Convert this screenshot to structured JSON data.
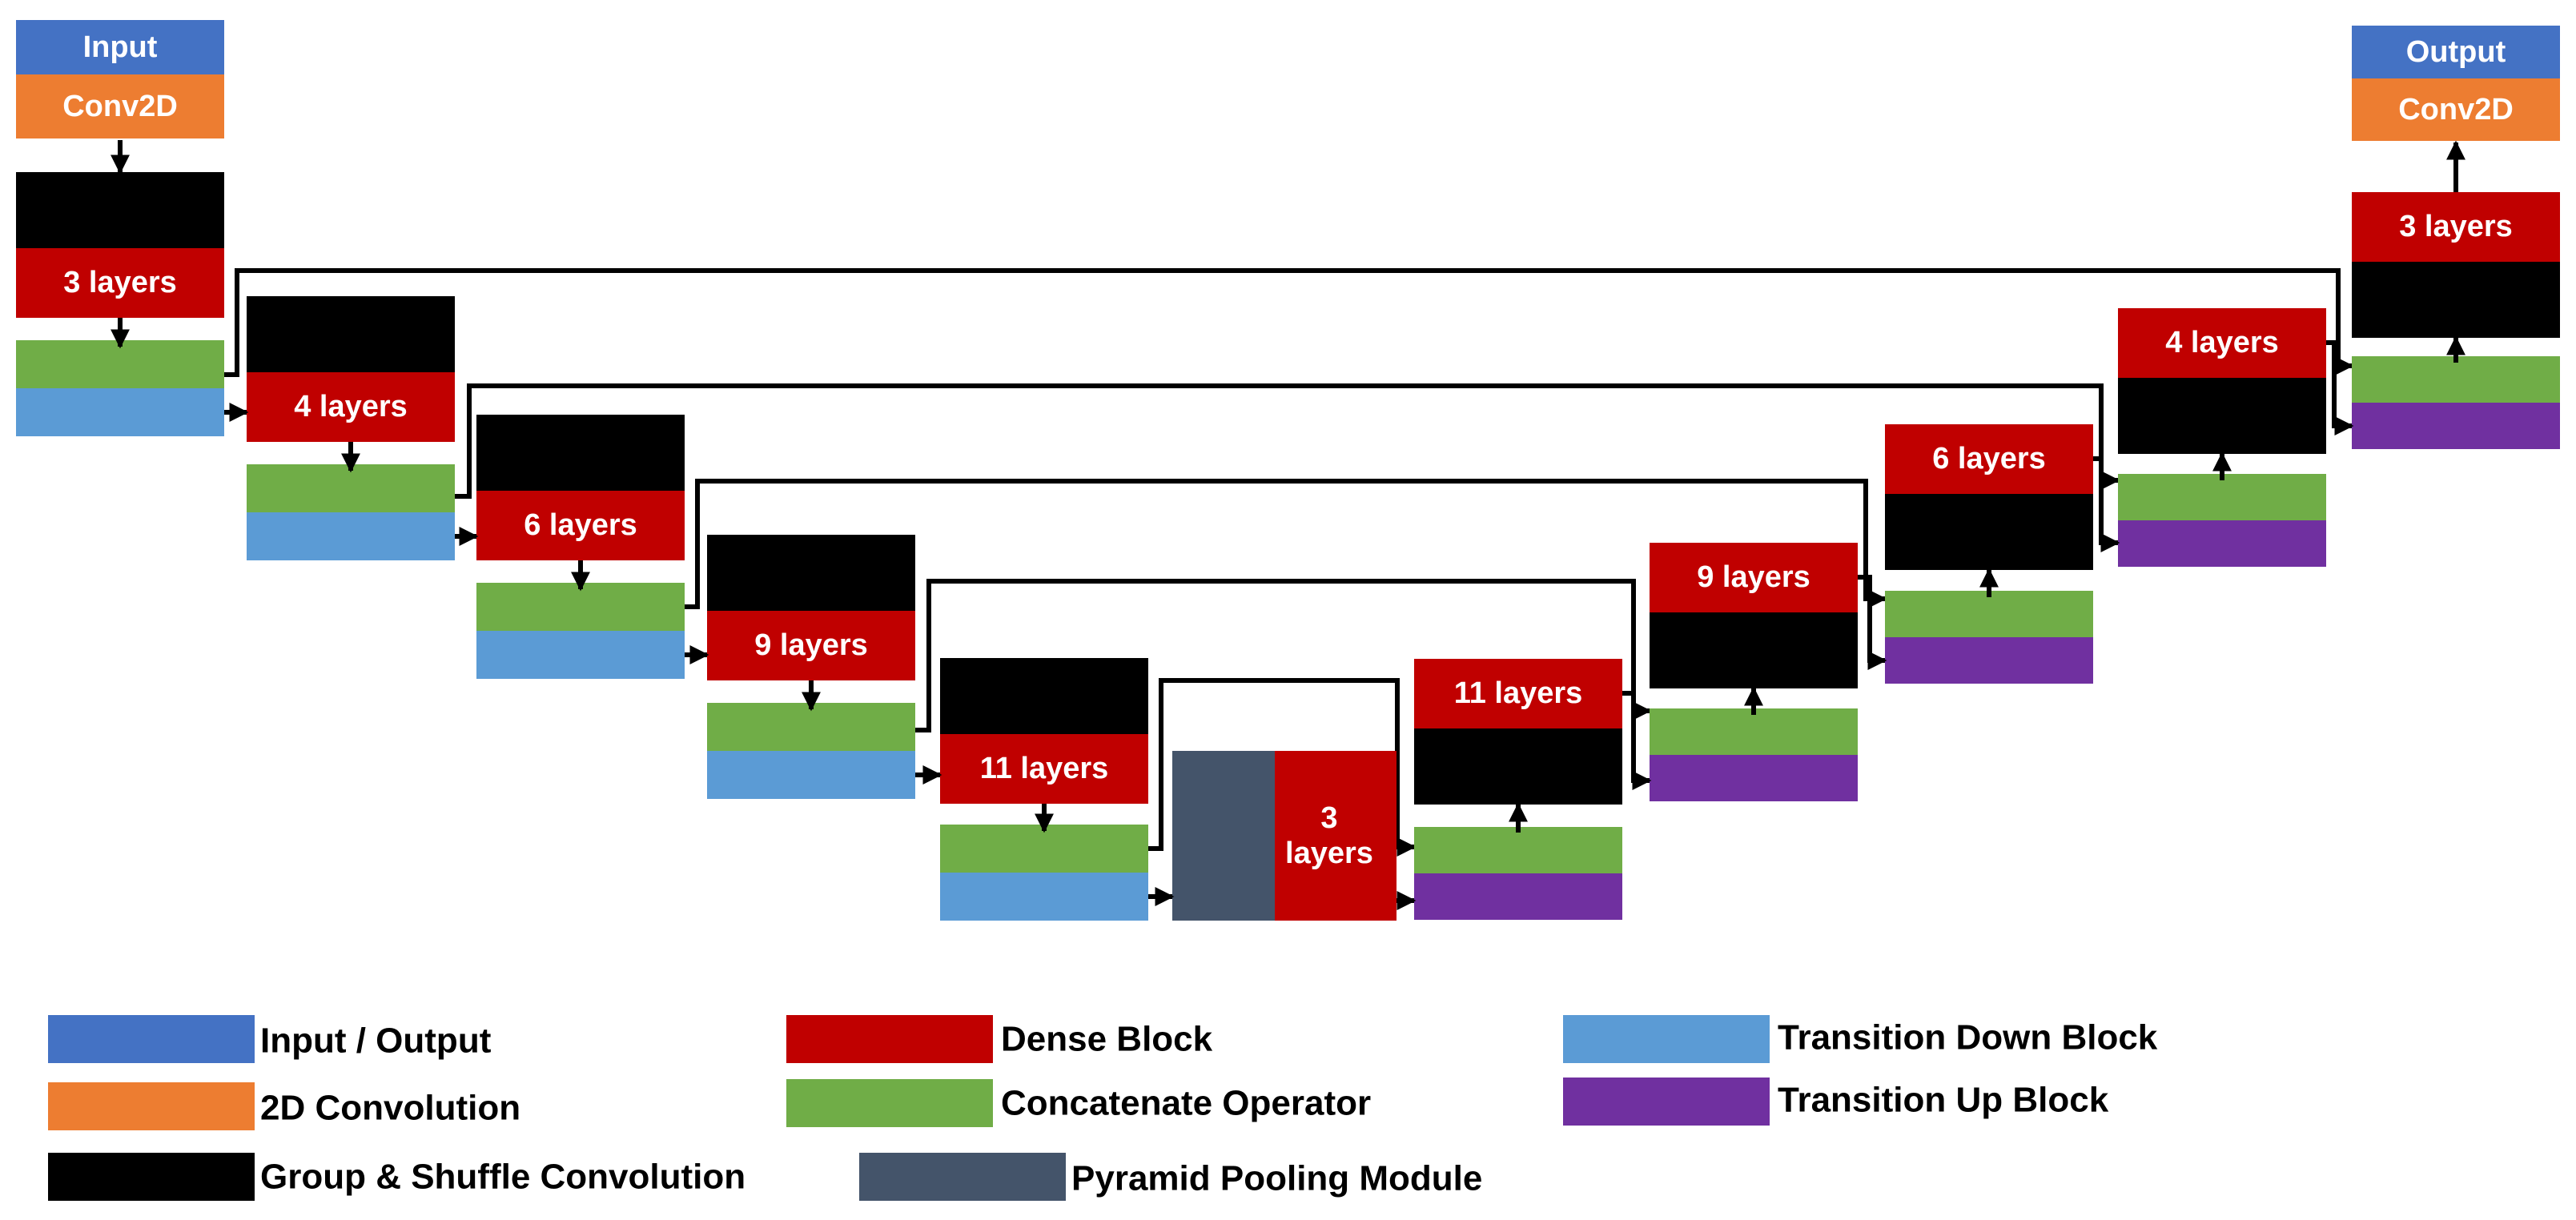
{
  "colors": {
    "io": "#4472C4",
    "conv2d": "#ED7D31",
    "dense": "#C00000",
    "concat": "#70AD47",
    "transition_down": "#5B9BD5",
    "transition_up": "#7030A0",
    "group_shuffle": "#000000",
    "pyramid": "#44546A"
  },
  "input": {
    "io_label": "Input",
    "conv_label": "Conv2D"
  },
  "output": {
    "io_label": "Output",
    "conv_label": "Conv2D"
  },
  "encoder": [
    {
      "dense_label": "3 layers"
    },
    {
      "dense_label": "4 layers"
    },
    {
      "dense_label": "6 layers"
    },
    {
      "dense_label": "9 layers"
    },
    {
      "dense_label": "11 layers"
    }
  ],
  "bottleneck": {
    "dense_label_line1": "3",
    "dense_label_line2": "layers"
  },
  "decoder": [
    {
      "dense_label": "11 layers"
    },
    {
      "dense_label": "9 layers"
    },
    {
      "dense_label": "6 layers"
    },
    {
      "dense_label": "4 layers"
    },
    {
      "dense_label": "3 layers"
    }
  ],
  "legend": [
    {
      "label": "Input / Output",
      "color": "#4472C4"
    },
    {
      "label": "2D Convolution",
      "color": "#ED7D31"
    },
    {
      "label": "Group & Shuffle Convolution",
      "color": "#000000"
    },
    {
      "label": "Dense Block",
      "color": "#C00000"
    },
    {
      "label": "Concatenate Operator",
      "color": "#70AD47"
    },
    {
      "label": "Pyramid Pooling Module",
      "color": "#44546A"
    },
    {
      "label": "Transition Down Block",
      "color": "#5B9BD5"
    },
    {
      "label": "Transition Up Block",
      "color": "#7030A0"
    }
  ]
}
